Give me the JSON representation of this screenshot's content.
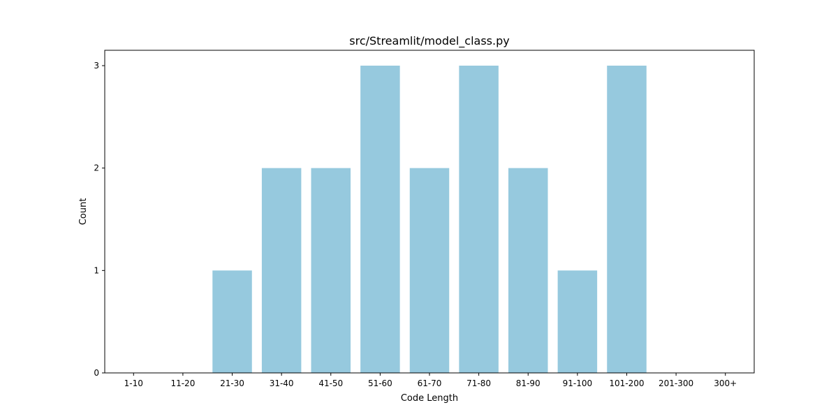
{
  "chart_data": {
    "type": "bar",
    "title": "src/Streamlit/model_class.py",
    "xlabel": "Code Length",
    "ylabel": "Count",
    "categories": [
      "1-10",
      "11-20",
      "21-30",
      "31-40",
      "41-50",
      "51-60",
      "61-70",
      "71-80",
      "81-90",
      "91-100",
      "101-200",
      "201-300",
      "300+"
    ],
    "values": [
      0,
      0,
      1,
      2,
      2,
      3,
      2,
      3,
      2,
      1,
      3,
      0,
      0
    ],
    "ylim": [
      0,
      3.15
    ],
    "yticks": [
      0,
      1,
      2,
      3
    ],
    "grid": false,
    "bar_color": "#96c9de"
  }
}
